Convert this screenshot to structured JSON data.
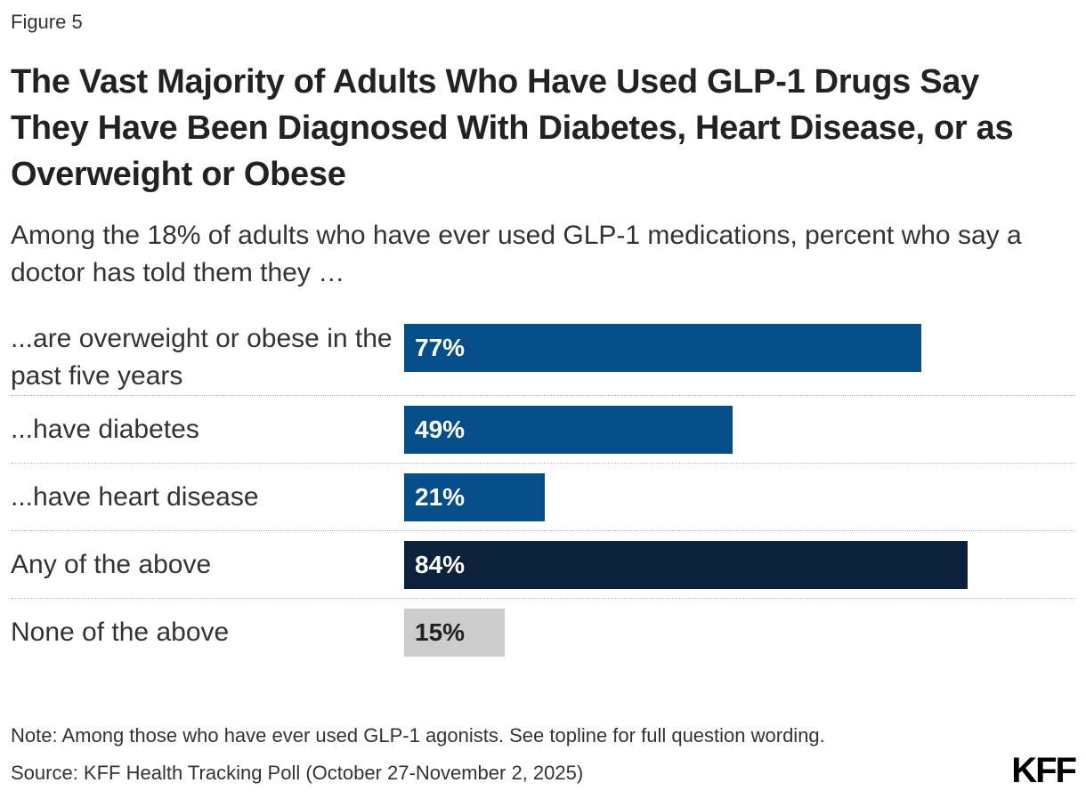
{
  "figure_label": "Figure 5",
  "title": "The Vast Majority of Adults Who Have Used GLP-1 Drugs Say They Have Been Diagnosed With Diabetes, Heart Disease, or as Overweight or Obese",
  "subtitle": "Among the 18% of adults who have ever used GLP-1 medications, percent who say a doctor has told them they …",
  "note": "Note: Among those who have ever used GLP-1 agonists. See topline for full question wording.",
  "source": "Source: KFF Health Tracking Poll (October 27-November 2, 2025)",
  "logo": "KFF",
  "colors": {
    "primary_bar": "#064e8a",
    "any_bar": "#0c223c",
    "none_bar": "#cccccc",
    "label_on_dark": "#ffffff",
    "label_on_light": "#222222"
  },
  "chart_data": {
    "type": "bar",
    "orientation": "horizontal",
    "categories": [
      "...are overweight or obese in the past five years",
      "...have diabetes",
      "...have heart disease",
      "Any of the above",
      "None of the above"
    ],
    "values": [
      77,
      49,
      21,
      84,
      15
    ],
    "value_labels": [
      "77%",
      "49%",
      "21%",
      "84%",
      "15%"
    ],
    "bar_colors": [
      "#064e8a",
      "#064e8a",
      "#064e8a",
      "#0c223c",
      "#cccccc"
    ],
    "label_colors": [
      "#ffffff",
      "#ffffff",
      "#ffffff",
      "#ffffff",
      "#222222"
    ],
    "unit": "%",
    "xlim": [
      0,
      100
    ],
    "grid": false,
    "legend": "none"
  }
}
